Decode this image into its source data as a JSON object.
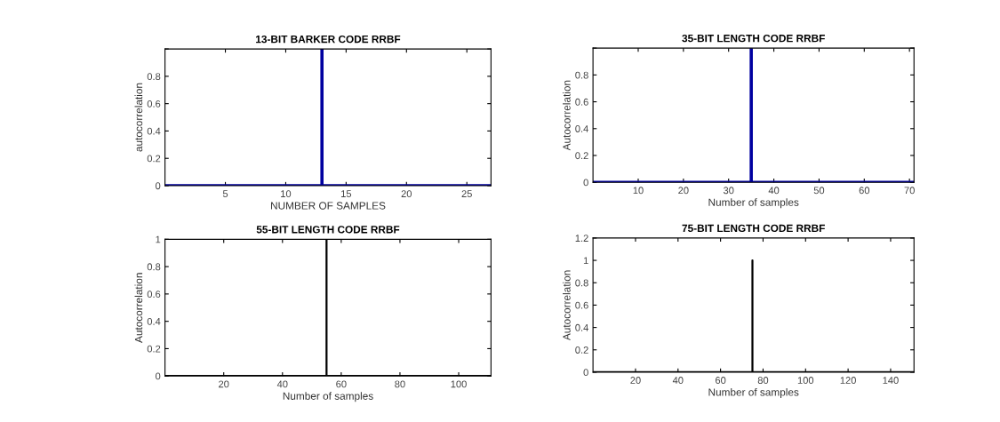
{
  "chart_data": [
    {
      "type": "line",
      "title": "13-BIT BARKER CODE RRBF",
      "xlabel": "NUMBER OF SAMPLES",
      "ylabel": "autocorrelation",
      "series": [
        {
          "color": "#0000a0",
          "x": [
            0,
            13,
            13,
            13,
            27
          ],
          "values": [
            0,
            0,
            1,
            0,
            0
          ]
        }
      ],
      "xlim": [
        0,
        27
      ],
      "xticks": [
        5,
        10,
        15,
        20,
        25
      ],
      "ylim": [
        0,
        1
      ],
      "yticks": [
        0,
        0.2,
        0.4,
        0.6,
        0.8,
        {
          "value": 1,
          "label": null
        }
      ],
      "grid": false
    },
    {
      "type": "line",
      "title": "35-BIT LENGTH CODE RRBF",
      "xlabel": "Number of samples",
      "ylabel": "Autocorrelation",
      "series": [
        {
          "color": "#0000a0",
          "x": [
            0,
            35,
            35,
            35,
            71
          ],
          "values": [
            0,
            0,
            1,
            0,
            0
          ]
        }
      ],
      "xlim": [
        0,
        71
      ],
      "xticks": [
        10,
        20,
        30,
        40,
        50,
        60,
        70
      ],
      "ylim": [
        0,
        1
      ],
      "yticks": [
        0,
        0.2,
        0.4,
        0.6,
        0.8,
        {
          "value": 1,
          "label": null
        }
      ],
      "grid": false
    },
    {
      "type": "line",
      "title": "55-BIT LENGTH CODE RRBF",
      "xlabel": "Number of samples",
      "ylabel": "Autocorrelation",
      "series": [
        {
          "color": "#000000",
          "x": [
            0,
            55,
            55,
            55,
            111
          ],
          "values": [
            0,
            0,
            1,
            0,
            0
          ]
        }
      ],
      "xlim": [
        0,
        111
      ],
      "xticks": [
        20,
        40,
        60,
        80,
        100
      ],
      "ylim": [
        0,
        1
      ],
      "yticks": [
        0,
        0.2,
        0.4,
        0.6,
        0.8,
        1
      ],
      "grid": false
    },
    {
      "type": "line",
      "title": "75-BIT LENGTH CODE RRBF",
      "xlabel": "Number of samples",
      "ylabel": "Autocorrelation",
      "series": [
        {
          "color": "#000000",
          "x": [
            0,
            75,
            75,
            75,
            151
          ],
          "values": [
            0,
            0,
            1,
            0,
            0
          ]
        }
      ],
      "xlim": [
        0,
        151
      ],
      "xticks": [
        20,
        40,
        60,
        80,
        100,
        120,
        140
      ],
      "ylim": [
        0,
        1.2
      ],
      "yticks": [
        0,
        0.2,
        0.4,
        0.6,
        0.8,
        1,
        1.2
      ],
      "grid": false
    }
  ]
}
